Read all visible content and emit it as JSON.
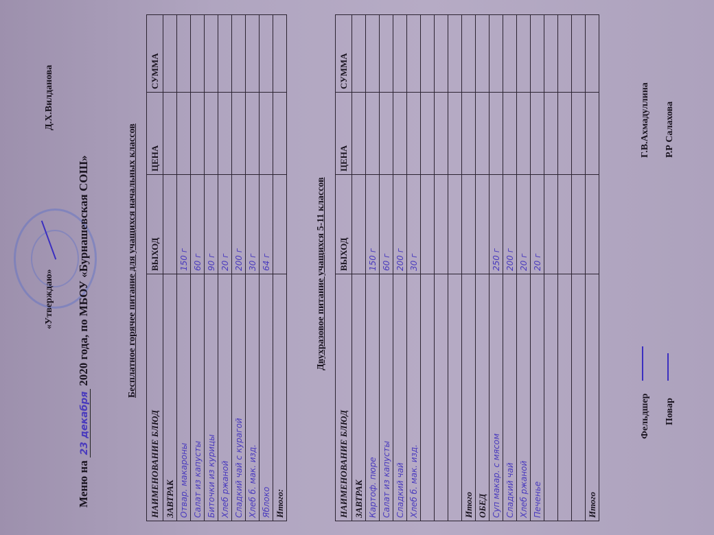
{
  "header": {
    "approve": "«Утверждаю»",
    "approver": "Д.Х.Вилданова",
    "menu_prefix": "Меню на",
    "menu_date_handwritten": "23 декабря",
    "menu_suffix": "2020 года, по МБОУ «Бурнашевская СОШ»"
  },
  "columns": {
    "name": "НАИМЕНОВАНИЕ БЛЮД",
    "output": "ВЫХОД",
    "price": "ЦЕНА",
    "sum": "СУММА"
  },
  "table1": {
    "title": "Бесплатное горячее питание для учащихся начальных классов",
    "section": "ЗАВТРАК",
    "rows": [
      {
        "name": "Отвар. макароны",
        "output": "150 г"
      },
      {
        "name": "Салат из капусты",
        "output": "60 г"
      },
      {
        "name": "Биточки из курицы",
        "output": "90 г"
      },
      {
        "name": "Хлеб ржаной",
        "output": "20 г"
      },
      {
        "name": "Сладкий чай с курагой",
        "output": "200 г"
      },
      {
        "name": "Хлеб б. мак. изд.",
        "output": "30 г"
      },
      {
        "name": "Яблоко",
        "output": "64 г"
      }
    ],
    "total": "Итого:"
  },
  "table2": {
    "title": "Двухразовое питание учащихся 5-11 классов",
    "breakfast": "ЗАВТРАК",
    "breakfast_rows": [
      {
        "name": "Картоф. пюре",
        "output": "150 г"
      },
      {
        "name": "Салат из капусты",
        "output": "60 г"
      },
      {
        "name": "Сладкий чай",
        "output": "200 г"
      },
      {
        "name": "Хлеб б. мак. изд.",
        "output": "30 г"
      }
    ],
    "total1": "Итого",
    "lunch": "ОБЕД",
    "lunch_rows": [
      {
        "name": "Суп макар. с мясом",
        "output": "250 г"
      },
      {
        "name": "Сладкий чай",
        "output": "200 г"
      },
      {
        "name": "Хлеб ржаной",
        "output": "20 г"
      },
      {
        "name": "Печенье",
        "output": "20 г"
      }
    ],
    "total2": "Итого"
  },
  "footer": {
    "medic_label": "Фельдшер",
    "medic_name": "Г.В.Ахмадуллина",
    "cook_label": "Повар",
    "cook_name": "Р.Р  Салахова"
  },
  "colors": {
    "ink": "#4a3bbd",
    "paper": "#b6abc5"
  }
}
